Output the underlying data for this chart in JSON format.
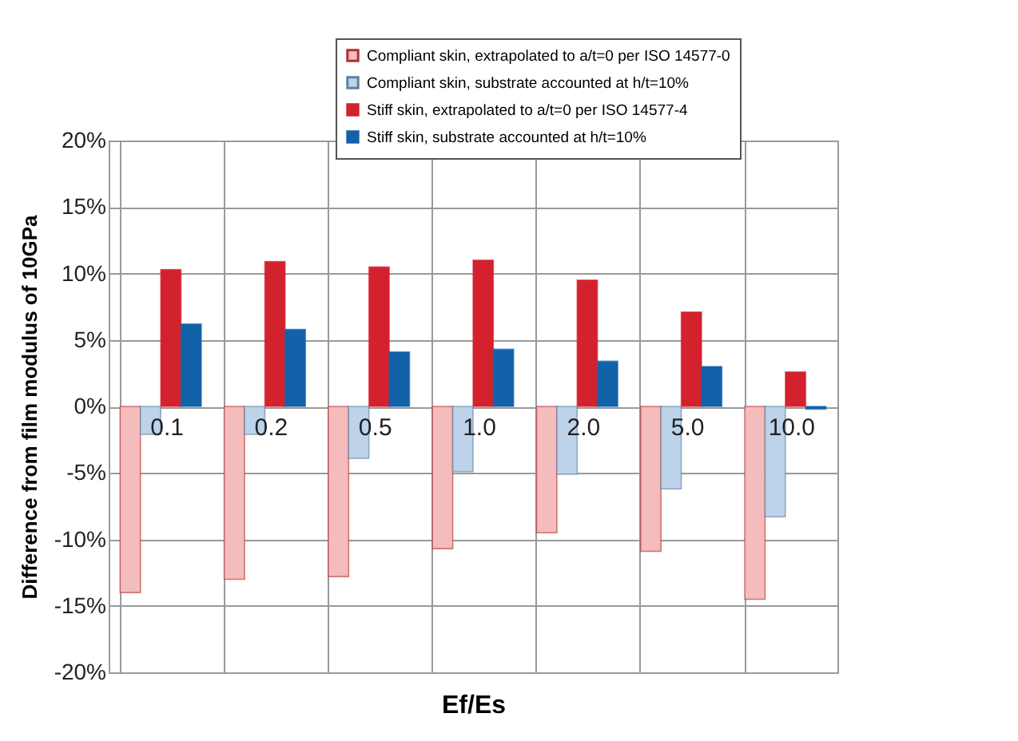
{
  "chart_data": {
    "type": "bar",
    "categories": [
      "0.1",
      "0.2",
      "0.5",
      "1.0",
      "2.0",
      "5.0",
      "10.0"
    ],
    "xlabel": "Ef/Es",
    "ylabel": "Difference from film modulus of 10GPa",
    "series": [
      {
        "name": "Compliant skin, extrapolated to a/t=0 per ISO 14577-0",
        "color": "#f4bcbc",
        "values": [
          -14.0,
          -13.0,
          -12.8,
          -10.7,
          -9.5,
          -10.9,
          -14.5
        ]
      },
      {
        "name": "Compliant skin, substrate accounted at h/t=10%",
        "color": "#bcd3ea",
        "values": [
          -2.1,
          -2.1,
          -3.9,
          -4.9,
          -5.1,
          -6.2,
          -8.3
        ]
      },
      {
        "name": "Stiff skin, extrapolated to a/t=0 per ISO 14577-4",
        "color": "#d3222e",
        "values": [
          10.3,
          10.9,
          10.5,
          11.0,
          9.5,
          7.1,
          2.6
        ]
      },
      {
        "name": "Stiff skin, substrate accounted at h/t=10%",
        "color": "#1262a9",
        "values": [
          6.2,
          5.8,
          4.1,
          4.3,
          3.4,
          3.0,
          -0.2
        ]
      }
    ],
    "ylim": [
      -20,
      20
    ],
    "yticks": [
      {
        "value": -20,
        "label": "-20%"
      },
      {
        "value": -15,
        "label": "-15%"
      },
      {
        "value": -10,
        "label": "-10%"
      },
      {
        "value": -5,
        "label": "-5%"
      },
      {
        "value": 0,
        "label": "0%"
      },
      {
        "value": 5,
        "label": "5%"
      },
      {
        "value": 10,
        "label": "10%"
      },
      {
        "value": 15,
        "label": "15%"
      },
      {
        "value": 20,
        "label": "20%"
      }
    ],
    "grid": true,
    "legend": "top right"
  }
}
